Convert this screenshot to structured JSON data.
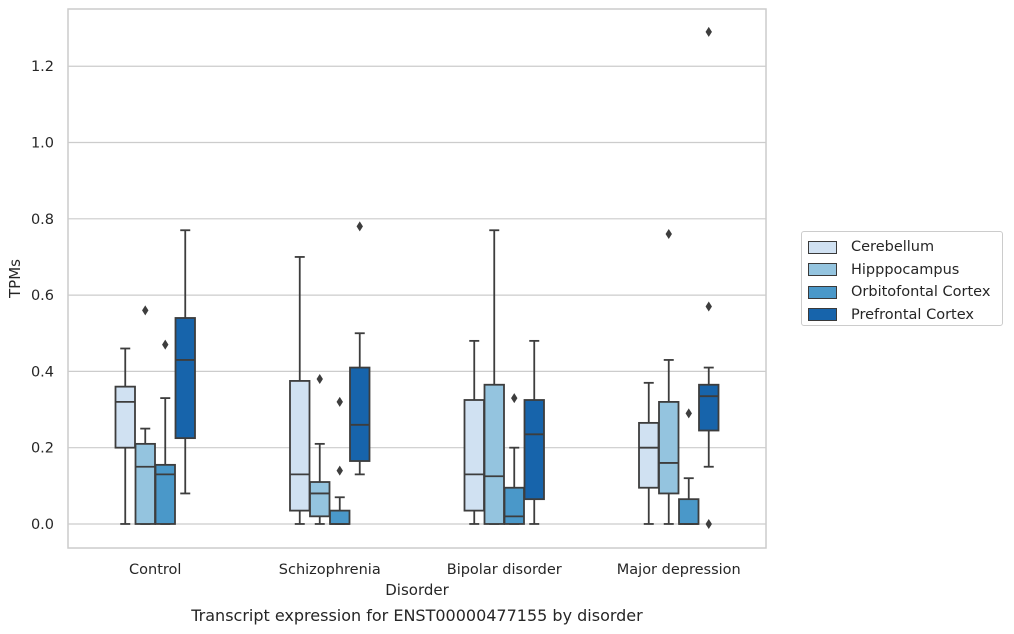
{
  "caption": "Transcript expression for ENST00000477155 by disorder",
  "chart_data": {
    "type": "box",
    "xlabel": "Disorder",
    "ylabel": "TPMs",
    "ylim": [
      -0.063,
      1.35
    ],
    "yticks": [
      "0.0",
      "0.2",
      "0.4",
      "0.6",
      "0.8",
      "1.0",
      "1.2"
    ],
    "grid": true,
    "legend_position": "right",
    "categories": [
      "Control",
      "Schizophrenia",
      "Bipolar disorder",
      "Major depression"
    ],
    "series": [
      {
        "name": "Cerebellum",
        "color": "#d0e1f2",
        "boxes": [
          {
            "whislo": 0.0,
            "q1": 0.2,
            "med": 0.32,
            "q3": 0.36,
            "whishi": 0.46,
            "fliers": []
          },
          {
            "whislo": 0.0,
            "q1": 0.035,
            "med": 0.13,
            "q3": 0.375,
            "whishi": 0.7,
            "fliers": []
          },
          {
            "whislo": 0.0,
            "q1": 0.035,
            "med": 0.13,
            "q3": 0.325,
            "whishi": 0.48,
            "fliers": []
          },
          {
            "whislo": 0.0,
            "q1": 0.095,
            "med": 0.2,
            "q3": 0.265,
            "whishi": 0.37,
            "fliers": []
          }
        ]
      },
      {
        "name": "Hipppocampus",
        "color": "#94c4df",
        "boxes": [
          {
            "whislo": 0.0,
            "q1": 0.0,
            "med": 0.15,
            "q3": 0.21,
            "whishi": 0.25,
            "fliers": [
              0.56
            ]
          },
          {
            "whislo": 0.0,
            "q1": 0.02,
            "med": 0.08,
            "q3": 0.11,
            "whishi": 0.21,
            "fliers": [
              0.38
            ]
          },
          {
            "whislo": 0.0,
            "q1": 0.0,
            "med": 0.125,
            "q3": 0.365,
            "whishi": 0.77,
            "fliers": []
          },
          {
            "whislo": 0.0,
            "q1": 0.08,
            "med": 0.16,
            "q3": 0.32,
            "whishi": 0.43,
            "fliers": [
              0.76
            ]
          }
        ]
      },
      {
        "name": "Orbitofontal Cortex",
        "color": "#4a98c9",
        "boxes": [
          {
            "whislo": 0.0,
            "q1": 0.0,
            "med": 0.13,
            "q3": 0.155,
            "whishi": 0.33,
            "fliers": [
              0.47
            ]
          },
          {
            "whislo": 0.0,
            "q1": 0.0,
            "med": 0.0,
            "q3": 0.035,
            "whishi": 0.07,
            "fliers": [
              0.14,
              0.32
            ]
          },
          {
            "whislo": 0.0,
            "q1": 0.0,
            "med": 0.02,
            "q3": 0.095,
            "whishi": 0.2,
            "fliers": [
              0.33
            ]
          },
          {
            "whislo": 0.0,
            "q1": 0.0,
            "med": 0.0,
            "q3": 0.065,
            "whishi": 0.12,
            "fliers": [
              0.29
            ]
          }
        ]
      },
      {
        "name": "Prefrontal Cortex",
        "color": "#1764ab",
        "boxes": [
          {
            "whislo": 0.08,
            "q1": 0.225,
            "med": 0.43,
            "q3": 0.54,
            "whishi": 0.77,
            "fliers": []
          },
          {
            "whislo": 0.13,
            "q1": 0.165,
            "med": 0.26,
            "q3": 0.41,
            "whishi": 0.5,
            "fliers": [
              0.78
            ]
          },
          {
            "whislo": 0.0,
            "q1": 0.065,
            "med": 0.235,
            "q3": 0.325,
            "whishi": 0.48,
            "fliers": []
          },
          {
            "whislo": 0.15,
            "q1": 0.245,
            "med": 0.335,
            "q3": 0.365,
            "whishi": 0.41,
            "fliers": [
              0.0,
              0.57,
              1.29
            ]
          }
        ]
      }
    ]
  }
}
